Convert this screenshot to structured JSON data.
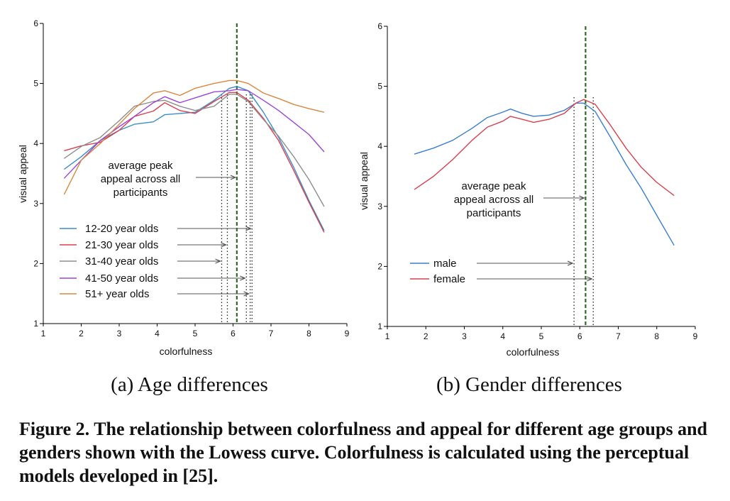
{
  "chart_data": [
    {
      "type": "line",
      "panel": "a",
      "caption_label": "(a)",
      "caption_text": "Age differences",
      "xlabel": "colorfulness",
      "ylabel": "visual appeal",
      "xlim": [
        1,
        9
      ],
      "ylim": [
        1,
        6
      ],
      "xticks": [
        1,
        2,
        3,
        4,
        5,
        6,
        7,
        8,
        9
      ],
      "yticks": [
        1,
        2,
        3,
        4,
        5,
        6
      ],
      "grid": false,
      "legend_position": "lower-left",
      "average_line_x": 6.1,
      "annotation": [
        "average peak",
        "appeal across all",
        "participants"
      ],
      "series": [
        {
          "name": "12-20 year olds",
          "color": "#3a8fc8",
          "peak_x": 6.5,
          "x": [
            1.55,
            2.0,
            2.5,
            3.0,
            3.4,
            3.9,
            4.2,
            4.6,
            5.0,
            5.5,
            5.9,
            6.1,
            6.4,
            6.8,
            7.2,
            7.6,
            8.0,
            8.4
          ],
          "y": [
            3.57,
            3.78,
            4.05,
            4.22,
            4.32,
            4.36,
            4.48,
            4.5,
            4.52,
            4.72,
            4.92,
            4.95,
            4.88,
            4.52,
            4.1,
            3.6,
            3.05,
            2.55
          ]
        },
        {
          "name": "21-30 year olds",
          "color": "#d94050",
          "peak_x": 5.85,
          "x": [
            1.55,
            2.0,
            2.5,
            3.0,
            3.4,
            3.9,
            4.2,
            4.6,
            5.0,
            5.5,
            5.9,
            6.1,
            6.4,
            6.8,
            7.2,
            7.6,
            8.0,
            8.4
          ],
          "y": [
            3.88,
            3.96,
            4.02,
            4.22,
            4.45,
            4.54,
            4.68,
            4.55,
            4.5,
            4.7,
            4.85,
            4.85,
            4.72,
            4.42,
            4.05,
            3.55,
            3.02,
            2.52
          ]
        },
        {
          "name": "31-40 year olds",
          "color": "#8e8e8e",
          "peak_x": 5.7,
          "x": [
            1.55,
            2.0,
            2.5,
            3.0,
            3.4,
            3.9,
            4.2,
            4.6,
            5.0,
            5.5,
            5.9,
            6.1,
            6.4,
            6.8,
            7.2,
            7.6,
            8.0,
            8.4
          ],
          "y": [
            3.75,
            3.95,
            4.1,
            4.38,
            4.62,
            4.7,
            4.72,
            4.62,
            4.55,
            4.62,
            4.82,
            4.82,
            4.7,
            4.4,
            4.12,
            3.78,
            3.4,
            2.95
          ]
        },
        {
          "name": "41-50 year olds",
          "color": "#9b47d6",
          "peak_x": 6.35,
          "x": [
            1.55,
            2.0,
            2.5,
            3.0,
            3.4,
            3.9,
            4.2,
            4.6,
            5.0,
            5.5,
            5.9,
            6.1,
            6.4,
            6.8,
            7.2,
            7.6,
            8.0,
            8.4
          ],
          "y": [
            3.42,
            3.72,
            4.05,
            4.28,
            4.45,
            4.68,
            4.78,
            4.68,
            4.76,
            4.86,
            4.88,
            4.9,
            4.88,
            4.72,
            4.55,
            4.35,
            4.15,
            3.86
          ]
        },
        {
          "name": "51+ year olds",
          "color": "#d98840",
          "peak_x": 6.45,
          "x": [
            1.55,
            2.0,
            2.5,
            3.0,
            3.4,
            3.9,
            4.2,
            4.6,
            5.0,
            5.5,
            5.9,
            6.1,
            6.4,
            6.8,
            7.2,
            7.6,
            8.0,
            8.4
          ],
          "y": [
            3.15,
            3.72,
            4.0,
            4.32,
            4.58,
            4.84,
            4.88,
            4.8,
            4.92,
            5.0,
            5.05,
            5.05,
            5.0,
            4.84,
            4.75,
            4.65,
            4.58,
            4.52
          ]
        }
      ]
    },
    {
      "type": "line",
      "panel": "b",
      "caption_label": "(b)",
      "caption_text": "Gender differences",
      "xlabel": "colorfulness",
      "ylabel": "visual appeal",
      "xlim": [
        1,
        9
      ],
      "ylim": [
        1,
        6
      ],
      "xticks": [
        1,
        2,
        3,
        4,
        5,
        6,
        7,
        8,
        9
      ],
      "yticks": [
        1,
        2,
        3,
        4,
        5,
        6
      ],
      "grid": false,
      "legend_position": "lower-left",
      "average_line_x": 6.15,
      "annotation": [
        "average peak",
        "appeal across all",
        "participants"
      ],
      "series": [
        {
          "name": "male",
          "color": "#3a7fd0",
          "peak_x": 5.85,
          "x": [
            1.7,
            2.2,
            2.7,
            3.2,
            3.6,
            4.0,
            4.2,
            4.5,
            4.8,
            5.2,
            5.6,
            5.9,
            6.1,
            6.4,
            6.8,
            7.2,
            7.6,
            8.0,
            8.45
          ],
          "y": [
            3.87,
            3.97,
            4.1,
            4.3,
            4.48,
            4.57,
            4.62,
            4.55,
            4.5,
            4.52,
            4.6,
            4.72,
            4.72,
            4.58,
            4.15,
            3.7,
            3.3,
            2.85,
            2.35
          ]
        },
        {
          "name": "female",
          "color": "#d94050",
          "peak_x": 6.35,
          "x": [
            1.7,
            2.2,
            2.7,
            3.2,
            3.6,
            4.0,
            4.2,
            4.5,
            4.8,
            5.2,
            5.6,
            5.9,
            6.1,
            6.4,
            6.8,
            7.2,
            7.6,
            8.0,
            8.45
          ],
          "y": [
            3.28,
            3.5,
            3.78,
            4.1,
            4.32,
            4.42,
            4.5,
            4.45,
            4.4,
            4.45,
            4.55,
            4.72,
            4.78,
            4.7,
            4.35,
            3.97,
            3.65,
            3.4,
            3.18
          ]
        }
      ]
    }
  ],
  "figure_caption": "Figure 2. The relationship between colorfulness and appeal for different age groups and genders shown with the Lowess curve. Colorfulness is calculated using the perceptual models developed in [25]."
}
